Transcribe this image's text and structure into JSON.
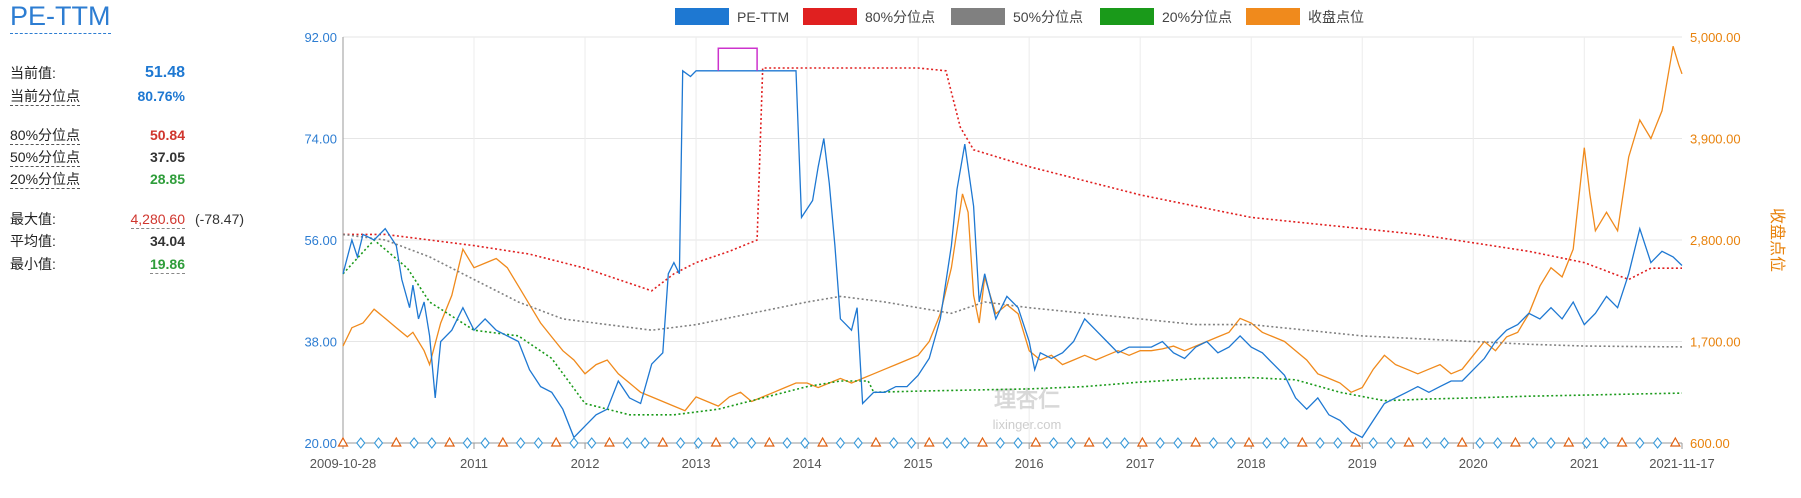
{
  "panel": {
    "title": "PE-TTM",
    "current_label": "当前值:",
    "current_value": "51.48",
    "current_pct_label": "当前分位点",
    "current_pct_value": "80.76%",
    "p80_label": "80%分位点",
    "p80_value": "50.84",
    "p50_label": "50%分位点",
    "p50_value": "37.05",
    "p20_label": "20%分位点",
    "p20_value": "28.85",
    "max_label": "最大值:",
    "max_value": "4,280.60",
    "max_extra": "(-78.47)",
    "avg_label": "平均值:",
    "avg_value": "34.04",
    "min_label": "最小值:",
    "min_value": "19.86"
  },
  "watermark": {
    "logo": "理杏仁",
    "site": "lixinger.com"
  },
  "chart_data": {
    "type": "line",
    "legend_placement": "top-center",
    "grid": true,
    "colors": {
      "pe": "#1e78d2",
      "p80": "#e02020",
      "p50": "#808080",
      "p20": "#1a9a1a",
      "index": "#f08a1c",
      "highlight": "#cc33cc"
    },
    "series_names": {
      "pe": "PE-TTM",
      "p80": "80%分位点",
      "p50": "50%分位点",
      "p20": "20%分位点",
      "index": "收盘点位"
    },
    "y_left": {
      "min": 20,
      "max": 92,
      "ticks": [
        "92.00",
        "74.00",
        "56.00",
        "38.00",
        "20.00"
      ]
    },
    "y_right": {
      "min": 600,
      "max": 5000,
      "label": "收盘点位",
      "ticks": [
        "5,000.00",
        "3,900.00",
        "2,800.00",
        "1,700.00",
        "600.00"
      ]
    },
    "x_labels": [
      "2009-10-28",
      "2011",
      "2012",
      "2013",
      "2014",
      "2015",
      "2016",
      "2017",
      "2018",
      "2019",
      "2020",
      "2021",
      "2021-11-17"
    ],
    "x_positions": [
      2009.82,
      2011.0,
      2012.0,
      2013.0,
      2014.0,
      2015.0,
      2016.0,
      2017.0,
      2018.0,
      2019.0,
      2020.0,
      2021.0,
      2021.88
    ],
    "x_range": [
      2009.82,
      2021.88
    ],
    "pe": [
      [
        2009.82,
        50
      ],
      [
        2009.9,
        56
      ],
      [
        2009.95,
        53
      ],
      [
        2010.0,
        57
      ],
      [
        2010.1,
        56
      ],
      [
        2010.2,
        58
      ],
      [
        2010.3,
        55
      ],
      [
        2010.35,
        49
      ],
      [
        2010.42,
        44
      ],
      [
        2010.45,
        48
      ],
      [
        2010.5,
        42
      ],
      [
        2010.55,
        45
      ],
      [
        2010.6,
        39
      ],
      [
        2010.65,
        28
      ],
      [
        2010.7,
        38
      ],
      [
        2010.8,
        40
      ],
      [
        2010.9,
        44
      ],
      [
        2011.0,
        40
      ],
      [
        2011.1,
        42
      ],
      [
        2011.2,
        40
      ],
      [
        2011.3,
        39
      ],
      [
        2011.4,
        38
      ],
      [
        2011.5,
        33
      ],
      [
        2011.6,
        30
      ],
      [
        2011.7,
        29
      ],
      [
        2011.8,
        26
      ],
      [
        2011.9,
        21
      ],
      [
        2012.0,
        23
      ],
      [
        2012.1,
        25
      ],
      [
        2012.2,
        26
      ],
      [
        2012.3,
        31
      ],
      [
        2012.4,
        28
      ],
      [
        2012.5,
        27
      ],
      [
        2012.6,
        34
      ],
      [
        2012.7,
        36
      ],
      [
        2012.75,
        50
      ],
      [
        2012.8,
        52
      ],
      [
        2012.85,
        50
      ],
      [
        2012.88,
        86
      ],
      [
        2012.95,
        85
      ],
      [
        2013.0,
        86
      ],
      [
        2013.2,
        86
      ],
      [
        2013.5,
        86
      ],
      [
        2013.55,
        86
      ],
      [
        2013.6,
        86
      ],
      [
        2013.8,
        86
      ],
      [
        2013.9,
        86
      ],
      [
        2013.95,
        60
      ],
      [
        2014.05,
        63
      ],
      [
        2014.1,
        69
      ],
      [
        2014.15,
        74
      ],
      [
        2014.2,
        66
      ],
      [
        2014.25,
        55
      ],
      [
        2014.3,
        42
      ],
      [
        2014.35,
        41
      ],
      [
        2014.4,
        40
      ],
      [
        2014.45,
        44
      ],
      [
        2014.5,
        27
      ],
      [
        2014.6,
        29
      ],
      [
        2014.7,
        29
      ],
      [
        2014.8,
        30
      ],
      [
        2014.9,
        30
      ],
      [
        2015.0,
        32
      ],
      [
        2015.1,
        35
      ],
      [
        2015.2,
        42
      ],
      [
        2015.3,
        55
      ],
      [
        2015.35,
        65
      ],
      [
        2015.42,
        73
      ],
      [
        2015.5,
        62
      ],
      [
        2015.55,
        45
      ],
      [
        2015.6,
        50
      ],
      [
        2015.7,
        42
      ],
      [
        2015.8,
        46
      ],
      [
        2015.9,
        44
      ],
      [
        2016.0,
        38
      ],
      [
        2016.05,
        33
      ],
      [
        2016.1,
        36
      ],
      [
        2016.2,
        35
      ],
      [
        2016.3,
        36
      ],
      [
        2016.4,
        38
      ],
      [
        2016.5,
        42
      ],
      [
        2016.6,
        40
      ],
      [
        2016.7,
        38
      ],
      [
        2016.8,
        36
      ],
      [
        2016.9,
        37
      ],
      [
        2017.0,
        37
      ],
      [
        2017.1,
        37
      ],
      [
        2017.2,
        38
      ],
      [
        2017.3,
        36
      ],
      [
        2017.4,
        35
      ],
      [
        2017.5,
        37
      ],
      [
        2017.6,
        38
      ],
      [
        2017.7,
        36
      ],
      [
        2017.8,
        37
      ],
      [
        2017.9,
        39
      ],
      [
        2018.0,
        37
      ],
      [
        2018.1,
        36
      ],
      [
        2018.2,
        34
      ],
      [
        2018.3,
        32
      ],
      [
        2018.4,
        28
      ],
      [
        2018.5,
        26
      ],
      [
        2018.6,
        28
      ],
      [
        2018.7,
        25
      ],
      [
        2018.8,
        24
      ],
      [
        2018.9,
        22
      ],
      [
        2019.0,
        21
      ],
      [
        2019.1,
        24
      ],
      [
        2019.2,
        27
      ],
      [
        2019.3,
        28
      ],
      [
        2019.4,
        29
      ],
      [
        2019.5,
        30
      ],
      [
        2019.6,
        29
      ],
      [
        2019.7,
        30
      ],
      [
        2019.8,
        31
      ],
      [
        2019.9,
        31
      ],
      [
        2020.0,
        33
      ],
      [
        2020.1,
        35
      ],
      [
        2020.2,
        38
      ],
      [
        2020.3,
        40
      ],
      [
        2020.4,
        41
      ],
      [
        2020.5,
        43
      ],
      [
        2020.6,
        42
      ],
      [
        2020.7,
        44
      ],
      [
        2020.8,
        42
      ],
      [
        2020.9,
        45
      ],
      [
        2021.0,
        41
      ],
      [
        2021.1,
        43
      ],
      [
        2021.2,
        46
      ],
      [
        2021.3,
        44
      ],
      [
        2021.4,
        50
      ],
      [
        2021.5,
        58
      ],
      [
        2021.6,
        52
      ],
      [
        2021.7,
        54
      ],
      [
        2021.8,
        53
      ],
      [
        2021.88,
        51.48
      ]
    ],
    "p80": [
      [
        2009.82,
        57
      ],
      [
        2010.2,
        57
      ],
      [
        2010.6,
        56
      ],
      [
        2011.0,
        55
      ],
      [
        2011.5,
        53.5
      ],
      [
        2012.0,
        51
      ],
      [
        2012.3,
        49
      ],
      [
        2012.6,
        47
      ],
      [
        2012.8,
        50
      ],
      [
        2013.0,
        52
      ],
      [
        2013.3,
        54
      ],
      [
        2013.55,
        56
      ],
      [
        2013.6,
        86.5
      ],
      [
        2013.9,
        86.5
      ],
      [
        2014.3,
        86.5
      ],
      [
        2015.0,
        86.5
      ],
      [
        2015.25,
        86
      ],
      [
        2015.38,
        76
      ],
      [
        2015.5,
        72
      ],
      [
        2016.0,
        69
      ],
      [
        2016.6,
        66
      ],
      [
        2017.0,
        64
      ],
      [
        2017.5,
        62
      ],
      [
        2018.0,
        60
      ],
      [
        2018.5,
        59
      ],
      [
        2019.0,
        58
      ],
      [
        2019.5,
        57
      ],
      [
        2020.0,
        55.5
      ],
      [
        2020.5,
        54
      ],
      [
        2021.0,
        52
      ],
      [
        2021.4,
        49
      ],
      [
        2021.6,
        51
      ],
      [
        2021.88,
        51
      ]
    ],
    "p50": [
      [
        2009.82,
        57
      ],
      [
        2010.2,
        56
      ],
      [
        2010.6,
        53
      ],
      [
        2011.0,
        49
      ],
      [
        2011.4,
        45
      ],
      [
        2011.8,
        42
      ],
      [
        2012.2,
        41
      ],
      [
        2012.6,
        40
      ],
      [
        2013.0,
        41
      ],
      [
        2013.5,
        43
      ],
      [
        2014.0,
        45
      ],
      [
        2014.3,
        46
      ],
      [
        2014.7,
        45
      ],
      [
        2015.0,
        44
      ],
      [
        2015.3,
        43
      ],
      [
        2015.6,
        45
      ],
      [
        2016.0,
        44
      ],
      [
        2016.5,
        43
      ],
      [
        2017.0,
        42
      ],
      [
        2017.5,
        41
      ],
      [
        2018.0,
        41
      ],
      [
        2018.5,
        40
      ],
      [
        2019.0,
        39
      ],
      [
        2019.5,
        38.5
      ],
      [
        2020.0,
        38
      ],
      [
        2020.5,
        37.5
      ],
      [
        2021.0,
        37.2
      ],
      [
        2021.5,
        37.1
      ],
      [
        2021.88,
        37.05
      ]
    ],
    "p20": [
      [
        2009.82,
        50
      ],
      [
        2010.1,
        56
      ],
      [
        2010.4,
        51
      ],
      [
        2010.6,
        45
      ],
      [
        2011.0,
        40
      ],
      [
        2011.4,
        39
      ],
      [
        2011.7,
        35
      ],
      [
        2012.0,
        27
      ],
      [
        2012.4,
        25
      ],
      [
        2012.8,
        25
      ],
      [
        2013.2,
        26
      ],
      [
        2013.6,
        28
      ],
      [
        2014.0,
        30
      ],
      [
        2014.3,
        31
      ],
      [
        2014.55,
        31
      ],
      [
        2014.6,
        29
      ],
      [
        2015.0,
        29.2
      ],
      [
        2015.5,
        29.4
      ],
      [
        2016.0,
        29.6
      ],
      [
        2016.5,
        30
      ],
      [
        2017.0,
        30.8
      ],
      [
        2017.5,
        31.4
      ],
      [
        2018.0,
        31.6
      ],
      [
        2018.4,
        31.2
      ],
      [
        2018.8,
        29
      ],
      [
        2019.2,
        27.5
      ],
      [
        2019.6,
        27.8
      ],
      [
        2020.0,
        28
      ],
      [
        2020.5,
        28.3
      ],
      [
        2021.0,
        28.5
      ],
      [
        2021.5,
        28.7
      ],
      [
        2021.88,
        28.85
      ]
    ],
    "index": [
      [
        2009.82,
        1650
      ],
      [
        2009.9,
        1850
      ],
      [
        2010.0,
        1900
      ],
      [
        2010.1,
        2050
      ],
      [
        2010.2,
        1950
      ],
      [
        2010.3,
        1850
      ],
      [
        2010.4,
        1750
      ],
      [
        2010.45,
        1800
      ],
      [
        2010.55,
        1600
      ],
      [
        2010.6,
        1450
      ],
      [
        2010.7,
        1900
      ],
      [
        2010.8,
        2200
      ],
      [
        2010.9,
        2700
      ],
      [
        2011.0,
        2500
      ],
      [
        2011.1,
        2550
      ],
      [
        2011.2,
        2600
      ],
      [
        2011.3,
        2500
      ],
      [
        2011.4,
        2300
      ],
      [
        2011.5,
        2100
      ],
      [
        2011.6,
        1900
      ],
      [
        2011.7,
        1750
      ],
      [
        2011.8,
        1600
      ],
      [
        2011.9,
        1500
      ],
      [
        2012.0,
        1350
      ],
      [
        2012.1,
        1450
      ],
      [
        2012.2,
        1500
      ],
      [
        2012.3,
        1350
      ],
      [
        2012.4,
        1250
      ],
      [
        2012.5,
        1150
      ],
      [
        2012.6,
        1100
      ],
      [
        2012.7,
        1050
      ],
      [
        2012.8,
        1000
      ],
      [
        2012.9,
        950
      ],
      [
        2013.0,
        1100
      ],
      [
        2013.1,
        1050
      ],
      [
        2013.2,
        1000
      ],
      [
        2013.3,
        1100
      ],
      [
        2013.4,
        1150
      ],
      [
        2013.5,
        1050
      ],
      [
        2013.6,
        1100
      ],
      [
        2013.7,
        1150
      ],
      [
        2013.8,
        1200
      ],
      [
        2013.9,
        1250
      ],
      [
        2014.0,
        1250
      ],
      [
        2014.1,
        1200
      ],
      [
        2014.2,
        1250
      ],
      [
        2014.3,
        1300
      ],
      [
        2014.4,
        1250
      ],
      [
        2014.5,
        1300
      ],
      [
        2014.6,
        1350
      ],
      [
        2014.7,
        1400
      ],
      [
        2014.8,
        1450
      ],
      [
        2014.9,
        1500
      ],
      [
        2015.0,
        1550
      ],
      [
        2015.1,
        1700
      ],
      [
        2015.2,
        2000
      ],
      [
        2015.3,
        2500
      ],
      [
        2015.4,
        3300
      ],
      [
        2015.45,
        3100
      ],
      [
        2015.5,
        2200
      ],
      [
        2015.55,
        1900
      ],
      [
        2015.6,
        2400
      ],
      [
        2015.7,
        2000
      ],
      [
        2015.8,
        2100
      ],
      [
        2015.9,
        2000
      ],
      [
        2016.0,
        1600
      ],
      [
        2016.1,
        1500
      ],
      [
        2016.2,
        1550
      ],
      [
        2016.3,
        1450
      ],
      [
        2016.4,
        1500
      ],
      [
        2016.5,
        1550
      ],
      [
        2016.6,
        1500
      ],
      [
        2016.7,
        1550
      ],
      [
        2016.8,
        1600
      ],
      [
        2016.9,
        1550
      ],
      [
        2017.0,
        1600
      ],
      [
        2017.1,
        1600
      ],
      [
        2017.2,
        1620
      ],
      [
        2017.3,
        1650
      ],
      [
        2017.4,
        1600
      ],
      [
        2017.5,
        1650
      ],
      [
        2017.6,
        1700
      ],
      [
        2017.7,
        1750
      ],
      [
        2017.8,
        1800
      ],
      [
        2017.9,
        1950
      ],
      [
        2018.0,
        1900
      ],
      [
        2018.1,
        1800
      ],
      [
        2018.2,
        1750
      ],
      [
        2018.3,
        1700
      ],
      [
        2018.4,
        1600
      ],
      [
        2018.5,
        1500
      ],
      [
        2018.6,
        1350
      ],
      [
        2018.7,
        1300
      ],
      [
        2018.8,
        1250
      ],
      [
        2018.9,
        1150
      ],
      [
        2019.0,
        1200
      ],
      [
        2019.1,
        1400
      ],
      [
        2019.2,
        1550
      ],
      [
        2019.3,
        1450
      ],
      [
        2019.4,
        1400
      ],
      [
        2019.5,
        1350
      ],
      [
        2019.6,
        1400
      ],
      [
        2019.7,
        1450
      ],
      [
        2019.8,
        1350
      ],
      [
        2019.9,
        1400
      ],
      [
        2020.0,
        1550
      ],
      [
        2020.1,
        1700
      ],
      [
        2020.2,
        1600
      ],
      [
        2020.3,
        1750
      ],
      [
        2020.4,
        1800
      ],
      [
        2020.5,
        2000
      ],
      [
        2020.6,
        2300
      ],
      [
        2020.7,
        2500
      ],
      [
        2020.8,
        2400
      ],
      [
        2020.9,
        2700
      ],
      [
        2021.0,
        3800
      ],
      [
        2021.05,
        3300
      ],
      [
        2021.1,
        2900
      ],
      [
        2021.2,
        3100
      ],
      [
        2021.3,
        2900
      ],
      [
        2021.4,
        3700
      ],
      [
        2021.5,
        4100
      ],
      [
        2021.6,
        3900
      ],
      [
        2021.7,
        4200
      ],
      [
        2021.8,
        4900
      ],
      [
        2021.85,
        4700
      ],
      [
        2021.88,
        4600
      ]
    ]
  }
}
